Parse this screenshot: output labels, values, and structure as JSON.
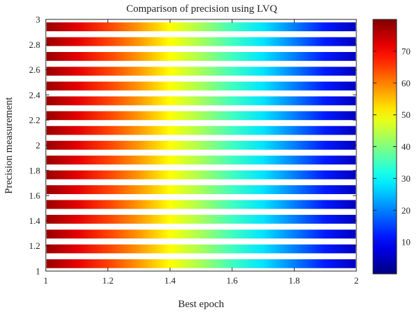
{
  "chart_data": {
    "type": "heatmap",
    "title": "Comparison of precision using LVQ",
    "xlabel": "Best epoch",
    "ylabel": "Precision measurement",
    "xlim": [
      1,
      2
    ],
    "ylim": [
      1,
      3
    ],
    "x_ticks": [
      1,
      1.2,
      1.4,
      1.6,
      1.8,
      2
    ],
    "y_ticks": [
      1,
      1.2,
      1.4,
      1.6,
      1.8,
      2,
      2.2,
      2.4,
      2.6,
      2.8,
      3
    ],
    "x_tick_labels": [
      "1",
      "1.2",
      "1.4",
      "1.6",
      "1.8",
      "2"
    ],
    "y_tick_labels": [
      "1",
      "1.2",
      "1.4",
      "1.6",
      "1.8",
      "2",
      "2.2",
      "2.4",
      "2.6",
      "2.8",
      "3"
    ],
    "band_count": 17,
    "value_profile": {
      "x": [
        1,
        1.1,
        1.2,
        1.3,
        1.4,
        1.5,
        1.6,
        1.7,
        1.8,
        1.9,
        2
      ],
      "values": [
        78,
        72,
        65,
        58,
        50,
        43,
        35,
        28,
        20,
        12,
        5
      ]
    },
    "colorbar": {
      "range": [
        0,
        80
      ],
      "ticks": [
        10,
        20,
        30,
        40,
        50,
        60,
        70
      ],
      "tick_labels": [
        "10",
        "20",
        "30",
        "40",
        "50",
        "60",
        "70"
      ],
      "colormap": "jet"
    },
    "grid": false
  }
}
